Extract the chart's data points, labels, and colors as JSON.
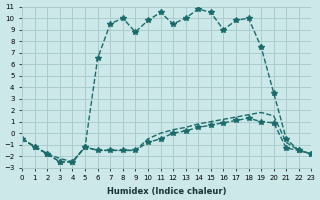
{
  "xlabel": "Humidex (Indice chaleur)",
  "ylabel": "",
  "xlim": [
    0,
    23
  ],
  "ylim": [
    -3,
    11
  ],
  "xticks": [
    0,
    1,
    2,
    3,
    4,
    5,
    6,
    7,
    8,
    9,
    10,
    11,
    12,
    13,
    14,
    15,
    16,
    17,
    18,
    19,
    20,
    21,
    22,
    23
  ],
  "yticks": [
    -3,
    -2,
    -1,
    0,
    1,
    2,
    3,
    4,
    5,
    6,
    7,
    8,
    9,
    10,
    11
  ],
  "background_color": "#cce8e8",
  "grid_color": "#aacccc",
  "line_color": "#1a6b6b",
  "line1_x": [
    0,
    1,
    2,
    3,
    4,
    5,
    6,
    7,
    8,
    9,
    10,
    11,
    12,
    13,
    14,
    15,
    16,
    17,
    18,
    19,
    20,
    21,
    22,
    23
  ],
  "line1_y": [
    -0.5,
    -1.2,
    -1.8,
    -2.5,
    -2.5,
    -1.2,
    6.5,
    9.5,
    10.0,
    8.8,
    9.8,
    10.5,
    9.5,
    10.0,
    10.8,
    10.5,
    9.0,
    9.8,
    10.0,
    7.5,
    3.5,
    -0.5,
    -1.5,
    -1.8
  ],
  "line2_x": [
    0,
    1,
    2,
    3,
    4,
    5,
    6,
    7,
    8,
    9,
    10,
    11,
    12,
    13,
    14,
    15,
    16,
    17,
    18,
    19,
    20,
    21,
    22,
    23
  ],
  "line2_y": [
    -0.5,
    -1.2,
    -1.8,
    -2.5,
    -2.5,
    -1.2,
    -1.5,
    -1.5,
    -1.5,
    -1.5,
    -0.8,
    -0.5,
    0.0,
    0.2,
    0.5,
    0.7,
    0.9,
    1.1,
    1.3,
    1.0,
    0.9,
    -1.3,
    -1.5,
    -1.8
  ],
  "line3_x": [
    0,
    2,
    3,
    4,
    5,
    6,
    7,
    8,
    9,
    10,
    11,
    12,
    13,
    14,
    15,
    16,
    17,
    18,
    19,
    20,
    21,
    22,
    23
  ],
  "line3_y": [
    -0.5,
    -1.8,
    -2.2,
    -2.5,
    -1.2,
    -1.5,
    -1.5,
    -1.5,
    -1.5,
    -0.5,
    0.0,
    0.3,
    0.5,
    0.8,
    1.0,
    1.2,
    1.4,
    1.6,
    1.8,
    1.5,
    -0.8,
    -1.5,
    -1.8
  ]
}
